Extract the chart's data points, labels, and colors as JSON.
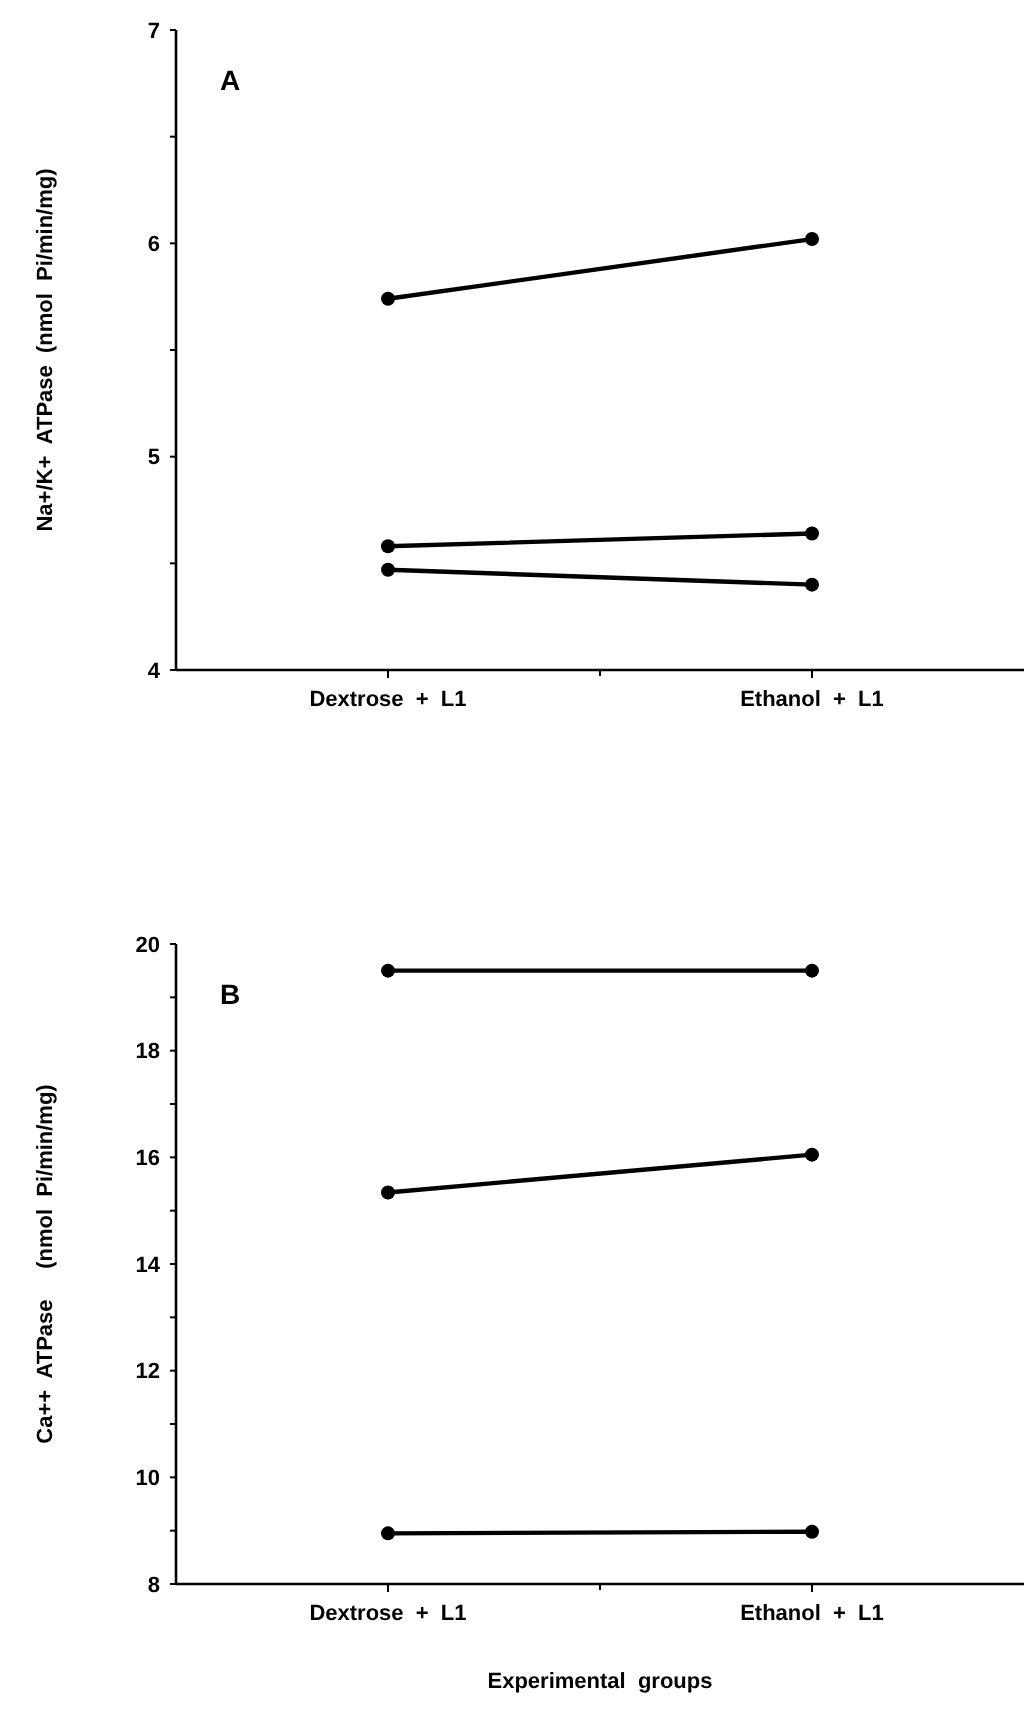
{
  "chart_data": [
    {
      "type": "line",
      "ylabel": "Na+/K+  ATPase  (nmol  Pi/min/mg)",
      "annotations": [
        "A"
      ],
      "categories": [
        "Dextrose  +  L1",
        "Ethanol  +  L1"
      ],
      "marker": "circle",
      "ylim": [
        4,
        7
      ],
      "yticks": [
        4,
        {
          "value": 4.5,
          "label": null
        },
        5,
        {
          "value": 5.5,
          "label": null
        },
        6,
        {
          "value": 6.5,
          "label": null
        },
        7
      ],
      "series": [
        {
          "color": "#000000",
          "values": [
            5.74,
            6.02
          ]
        },
        {
          "color": "#000000",
          "values": [
            4.58,
            4.64
          ]
        },
        {
          "color": "#000000",
          "values": [
            4.47,
            4.4
          ]
        }
      ]
    },
    {
      "type": "line",
      "ylabel": "Ca++  ATPase     (nmol  Pi/min/mg)",
      "xlabel": "Experimental  groups",
      "annotations": [
        "B"
      ],
      "categories": [
        "Dextrose  +  L1",
        "Ethanol  +  L1"
      ],
      "marker": "circle",
      "ylim": [
        8,
        20
      ],
      "yticks": [
        8,
        {
          "value": 9,
          "label": null
        },
        10,
        {
          "value": 11,
          "label": null
        },
        12,
        {
          "value": 13,
          "label": null
        },
        14,
        {
          "value": 15,
          "label": null
        },
        16,
        {
          "value": 17,
          "label": null
        },
        18,
        {
          "value": 19,
          "label": null
        },
        20
      ],
      "series": [
        {
          "color": "#000000",
          "values": [
            19.5,
            19.5
          ]
        },
        {
          "color": "#000000",
          "values": [
            15.34,
            16.05
          ]
        },
        {
          "color": "#000000",
          "values": [
            8.95,
            8.98
          ]
        }
      ]
    }
  ]
}
